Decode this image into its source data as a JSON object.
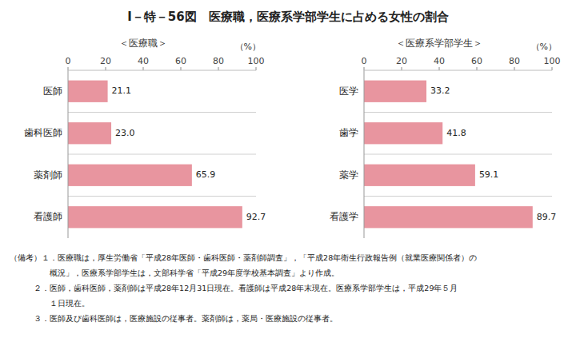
{
  "chart_data": [
    {
      "type": "bar",
      "orientation": "horizontal",
      "title": "I－特－56図　医療職，医療系学部学生に占める女性の割合",
      "subtitle": "＜医療職＞",
      "xlabel": "（%）",
      "categories": [
        "医師",
        "歯科医師",
        "薬剤師",
        "看護師"
      ],
      "values": [
        21.1,
        23.0,
        65.9,
        92.7
      ],
      "value_labels": [
        "21.1",
        "23.0",
        "65.9",
        "92.7"
      ],
      "color": "#e8959f",
      "xlim": [
        0,
        100
      ],
      "xticks": [
        0,
        20,
        40,
        60,
        80,
        100
      ],
      "grid": false,
      "data_labels": true,
      "annotations": [
        "（備考）１．医療職は，厚生労働省「平成28年医師・歯科医師・薬剤師調査」，「平成28年衛生行政報告例（就業医療関係者）の",
        "　　　　　概況」，医療系学部学生は，文部科学省「平成29年度学校基本調査」より作成。",
        "　　　２．医師，歯科医師，薬剤師は平成28年12月31日現在。看護師は平成28年末現在。医療系学部学生は，平成29年５月",
        "　　　　　１日現在。",
        "　　　３．医師及び歯科医師は，医療施設の従事者。薬剤師は，薬局・医療施設の従事者。"
      ]
    },
    {
      "type": "bar",
      "orientation": "horizontal",
      "subtitle": "＜医療系学部学生＞",
      "xlabel": "（%）",
      "categories": [
        "医学",
        "歯学",
        "薬学",
        "看護学"
      ],
      "values": [
        33.2,
        41.8,
        59.1,
        89.7
      ],
      "color": "#e8959f",
      "xlim": [
        0,
        100
      ],
      "xticks": [
        0,
        20,
        40,
        60,
        80,
        100
      ],
      "grid": false,
      "data_labels": true
    }
  ]
}
